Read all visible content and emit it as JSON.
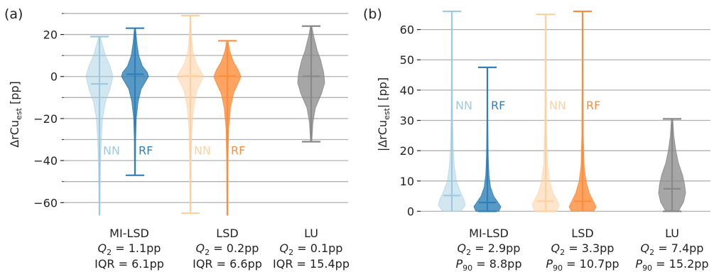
{
  "chart_data": [
    {
      "type": "violin",
      "panel_label": "(a)",
      "ylabel_main": "ΔrCu",
      "ylabel_sub": "est",
      "ylabel_unit": " [pp]",
      "ylim": [
        -67,
        31
      ],
      "yticks": [
        -60,
        -40,
        -20,
        0,
        20
      ],
      "ytick_labels": [
        "−60",
        "−40",
        "−20",
        "0",
        "20"
      ],
      "grid": "horizontal",
      "groups": [
        {
          "name": "MI-LSD",
          "stat1": "Q",
          "stat1_sub": "2",
          "stat1_value": " = 1.1pp",
          "stat2": "IQR",
          "stat2_sub": "",
          "stat2_value": " = 6.1pp"
        },
        {
          "name": "LSD",
          "stat1": "Q",
          "stat1_sub": "2",
          "stat1_value": " = 0.2pp",
          "stat2": "IQR",
          "stat2_sub": "",
          "stat2_value": " = 6.6pp"
        },
        {
          "name": "LU",
          "stat1": "Q",
          "stat1_sub": "2",
          "stat1_value": " = 0.1pp",
          "stat2": "IQR",
          "stat2_sub": "",
          "stat2_value": " = 15.4pp"
        }
      ],
      "series": [
        {
          "name": "NN",
          "group": "MI-LSD",
          "color": "#9ecae1",
          "alpha": 0.45,
          "min": -66,
          "max": 19,
          "median": -3.5,
          "show_cap_bottom": false,
          "label_y": -35,
          "density": [
            [
              -66,
              0.3
            ],
            [
              -45,
              0.6
            ],
            [
              -30,
              1.2
            ],
            [
              -20,
              2
            ],
            [
              -12,
              4
            ],
            [
              -6,
              7
            ],
            [
              0,
              9
            ],
            [
              5,
              7
            ],
            [
              10,
              4
            ],
            [
              15,
              2
            ],
            [
              19,
              0.5
            ]
          ]
        },
        {
          "name": "RF",
          "group": "MI-LSD",
          "color": "#2f7fb8",
          "alpha": 0.8,
          "min": -47,
          "max": 23,
          "median": 1.1,
          "show_cap_bottom": true,
          "label_y": -35,
          "density": [
            [
              -47,
              0.3
            ],
            [
              -30,
              0.5
            ],
            [
              -20,
              1
            ],
            [
              -12,
              2.5
            ],
            [
              -6,
              5
            ],
            [
              -2,
              9
            ],
            [
              0,
              11
            ],
            [
              2,
              10
            ],
            [
              5,
              6
            ],
            [
              10,
              3
            ],
            [
              16,
              1.5
            ],
            [
              23,
              0.4
            ]
          ]
        },
        {
          "name": "NN",
          "group": "LSD",
          "color": "#fdd0a2",
          "alpha": 0.55,
          "min": -65,
          "max": 29,
          "median": 0.2,
          "show_cap_bottom": true,
          "label_y": -35,
          "density": [
            [
              -65,
              0.3
            ],
            [
              -40,
              0.6
            ],
            [
              -25,
              1.2
            ],
            [
              -15,
              2.5
            ],
            [
              -7,
              5
            ],
            [
              -2,
              9
            ],
            [
              0,
              11
            ],
            [
              2,
              9
            ],
            [
              6,
              5
            ],
            [
              12,
              2
            ],
            [
              20,
              0.8
            ],
            [
              29,
              0.3
            ]
          ]
        },
        {
          "name": "RF",
          "group": "LSD",
          "color": "#fd8d3c",
          "alpha": 0.8,
          "min": -66,
          "max": 17,
          "median": 0.2,
          "show_cap_bottom": false,
          "label_y": -35,
          "density": [
            [
              -66,
              0.3
            ],
            [
              -40,
              0.5
            ],
            [
              -25,
              1
            ],
            [
              -15,
              2.5
            ],
            [
              -8,
              5
            ],
            [
              -3,
              9
            ],
            [
              0,
              11
            ],
            [
              3,
              9
            ],
            [
              7,
              5
            ],
            [
              12,
              2
            ],
            [
              17,
              0.4
            ]
          ]
        },
        {
          "name": "",
          "group": "LU",
          "color": "#888888",
          "alpha": 0.75,
          "min": -31,
          "max": 24,
          "median": 0.1,
          "show_cap_bottom": true,
          "label_y": null,
          "density": [
            [
              -31,
              0.3
            ],
            [
              -22,
              0.8
            ],
            [
              -15,
              2
            ],
            [
              -8,
              5
            ],
            [
              -3,
              6.5
            ],
            [
              2,
              6
            ],
            [
              8,
              4.5
            ],
            [
              12,
              3
            ],
            [
              16,
              2
            ],
            [
              20,
              1
            ],
            [
              24,
              0.3
            ]
          ]
        }
      ]
    },
    {
      "type": "violin",
      "panel_label": "(b)",
      "ylabel_main": "|ΔrCu",
      "ylabel_sub": "est",
      "ylabel_unit": "| [pp]",
      "ylim": [
        -2,
        66
      ],
      "yticks": [
        0,
        10,
        20,
        30,
        40,
        50,
        60
      ],
      "ytick_labels": [
        "0",
        "10",
        "20",
        "30",
        "40",
        "50",
        "60"
      ],
      "grid": "horizontal",
      "groups": [
        {
          "name": "MI-LSD",
          "stat1": "Q",
          "stat1_sub": "2",
          "stat1_value": " = 2.9pp",
          "stat2": "P",
          "stat2_sub": "90",
          "stat2_value": " = 8.8pp"
        },
        {
          "name": "LSD",
          "stat1": "Q",
          "stat1_sub": "2",
          "stat1_value": " = 3.3pp",
          "stat2": "P",
          "stat2_sub": "90",
          "stat2_value": " = 10.7pp"
        },
        {
          "name": "LU",
          "stat1": "Q",
          "stat1_sub": "2",
          "stat1_value": " = 7.4pp",
          "stat2": "P",
          "stat2_sub": "90",
          "stat2_value": " = 15.2pp"
        }
      ],
      "series": [
        {
          "name": "NN",
          "group": "MI-LSD",
          "color": "#9ecae1",
          "alpha": 0.45,
          "min": 0,
          "max": 66,
          "median": 5.2,
          "show_cap_bottom": false,
          "label_y": 35,
          "density": [
            [
              0,
              6
            ],
            [
              2,
              9
            ],
            [
              4,
              8
            ],
            [
              6,
              6
            ],
            [
              10,
              3
            ],
            [
              15,
              1.6
            ],
            [
              20,
              1
            ],
            [
              30,
              0.5
            ],
            [
              45,
              0.3
            ],
            [
              66,
              0.2
            ]
          ]
        },
        {
          "name": "RF",
          "group": "MI-LSD",
          "color": "#2f7fb8",
          "alpha": 0.8,
          "min": 0,
          "max": 47.5,
          "median": 2.9,
          "show_cap_bottom": true,
          "label_y": 35,
          "density": [
            [
              0,
              11
            ],
            [
              1.5,
              13
            ],
            [
              3,
              10
            ],
            [
              5,
              6
            ],
            [
              8,
              3
            ],
            [
              12,
              1.5
            ],
            [
              18,
              0.8
            ],
            [
              30,
              0.4
            ],
            [
              47.5,
              0.3
            ]
          ]
        },
        {
          "name": "NN",
          "group": "LSD",
          "color": "#fdd0a2",
          "alpha": 0.55,
          "min": 0,
          "max": 65,
          "median": 3.3,
          "show_cap_bottom": true,
          "label_y": 35,
          "density": [
            [
              0,
              8
            ],
            [
              2,
              10
            ],
            [
              4,
              8
            ],
            [
              6,
              5.5
            ],
            [
              10,
              3
            ],
            [
              15,
              1.5
            ],
            [
              25,
              0.7
            ],
            [
              40,
              0.4
            ],
            [
              65,
              0.3
            ]
          ]
        },
        {
          "name": "RF",
          "group": "LSD",
          "color": "#fd8d3c",
          "alpha": 0.8,
          "min": 0,
          "max": 66,
          "median": 3.3,
          "show_cap_bottom": false,
          "label_y": 35,
          "density": [
            [
              0,
              10
            ],
            [
              1.5,
              12
            ],
            [
              3,
              10
            ],
            [
              6,
              6
            ],
            [
              10,
              3
            ],
            [
              15,
              1.3
            ],
            [
              25,
              0.6
            ],
            [
              40,
              0.4
            ],
            [
              66,
              0.3
            ]
          ]
        },
        {
          "name": "",
          "group": "LU",
          "color": "#888888",
          "alpha": 0.75,
          "min": 0,
          "max": 30.5,
          "median": 7.4,
          "show_cap_bottom": true,
          "label_y": null,
          "density": [
            [
              0,
              3
            ],
            [
              3,
              5.5
            ],
            [
              6,
              6.5
            ],
            [
              9,
              6
            ],
            [
              12,
              5
            ],
            [
              16,
              3
            ],
            [
              20,
              1.8
            ],
            [
              25,
              0.8
            ],
            [
              30.5,
              0.3
            ]
          ]
        }
      ]
    }
  ]
}
